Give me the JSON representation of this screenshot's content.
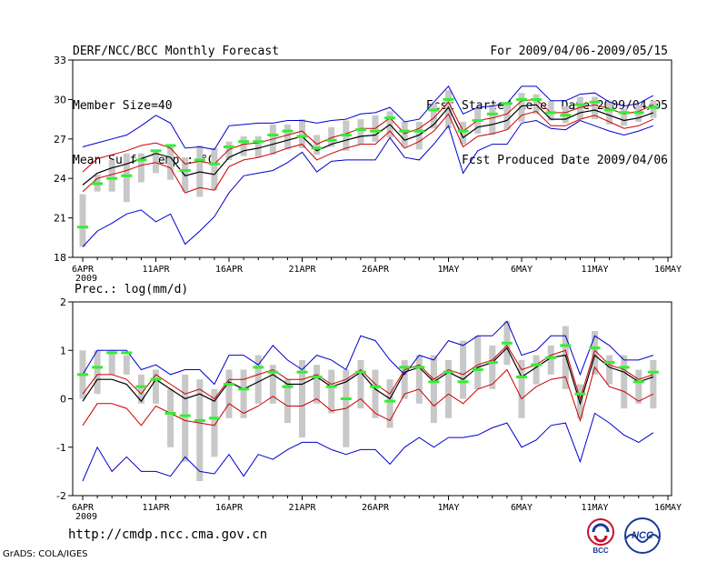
{
  "header": {
    "left": [
      "DERF/NCC/BCC Monthly Forecast",
      "Member Size=40",
      "Mean Surf. Temp.: °C"
    ],
    "right": [
      "For 2009/04/06-2009/05/15",
      "Fcst Started Refer Date 2009/04/05",
      "Fcst Produced Date 2009/04/06"
    ]
  },
  "footer": {
    "url": "http://cmdp.ncc.cma.gov.cn",
    "credit": "GrADS: COLA/IGES",
    "logo_left": "BCC",
    "logo_right": "NCC"
  },
  "colors": {
    "envelope": "#0000cc",
    "spread": "#cc0000",
    "mean": "#000000",
    "median": "#33ee33",
    "box": "#c8c8c8"
  },
  "chart_data": [
    {
      "type": "line",
      "title": "Mean Surf. Temp.: °C",
      "ylim": [
        18,
        33
      ],
      "yticks": [
        18,
        21,
        24,
        27,
        30,
        33
      ],
      "xlim": [
        0,
        39
      ],
      "xticks": [
        {
          "day": 0,
          "label": "6APR",
          "sub": "2009"
        },
        {
          "day": 5,
          "label": "11APR"
        },
        {
          "day": 10,
          "label": "16APR"
        },
        {
          "day": 15,
          "label": "21APR"
        },
        {
          "day": 20,
          "label": "26APR"
        },
        {
          "day": 25,
          "label": "1MAY"
        },
        {
          "day": 30,
          "label": "6MAY"
        },
        {
          "day": 35,
          "label": "11MAY"
        },
        {
          "day": 40,
          "label": "16MAY"
        }
      ],
      "series": [
        {
          "name": "max",
          "values": [
            26.4,
            26.7,
            27.0,
            27.3,
            28.0,
            28.8,
            28.2,
            26.3,
            26.4,
            26.2,
            28.0,
            28.1,
            28.2,
            28.2,
            28.4,
            28.4,
            28.2,
            28.4,
            28.5,
            28.9,
            29.0,
            29.4,
            28.3,
            28.5,
            29.8,
            31.0,
            28.9,
            29.4,
            29.5,
            29.7,
            31.0,
            31.0,
            29.9,
            29.9,
            30.4,
            30.5,
            29.8,
            29.5,
            29.7,
            30.3
          ]
        },
        {
          "name": "upper",
          "values": [
            24.5,
            25.5,
            25.8,
            26.1,
            26.5,
            26.7,
            26.3,
            25.1,
            25.3,
            25.1,
            26.2,
            26.6,
            26.7,
            27.0,
            27.3,
            27.6,
            26.6,
            27.1,
            27.4,
            27.8,
            27.8,
            28.6,
            27.4,
            27.8,
            28.6,
            29.8,
            27.6,
            28.4,
            28.6,
            28.9,
            29.9,
            30.0,
            29.0,
            29.0,
            29.4,
            29.6,
            29.3,
            28.9,
            29.1,
            29.6
          ]
        },
        {
          "name": "mean",
          "values": [
            23.5,
            24.4,
            24.8,
            25.1,
            25.5,
            25.9,
            25.6,
            24.2,
            24.5,
            24.3,
            25.6,
            26.1,
            26.3,
            26.6,
            26.9,
            27.2,
            26.1,
            26.6,
            26.9,
            27.2,
            27.3,
            28.1,
            26.9,
            27.3,
            28.1,
            29.4,
            27.1,
            27.9,
            28.1,
            28.4,
            29.5,
            29.6,
            28.5,
            28.5,
            29.0,
            29.2,
            28.8,
            28.4,
            28.6,
            29.0
          ]
        },
        {
          "name": "lower",
          "values": [
            23.0,
            24.0,
            24.3,
            24.6,
            25.0,
            25.2,
            24.8,
            22.9,
            23.3,
            23.1,
            24.9,
            25.4,
            25.6,
            25.9,
            26.3,
            26.6,
            25.4,
            25.9,
            26.3,
            26.6,
            26.6,
            27.6,
            26.3,
            26.8,
            27.6,
            28.9,
            26.4,
            27.2,
            27.4,
            27.7,
            28.8,
            29.1,
            28.0,
            28.0,
            28.5,
            28.8,
            28.3,
            27.8,
            28.0,
            28.5
          ]
        },
        {
          "name": "min",
          "values": [
            18.8,
            20.0,
            20.6,
            21.3,
            21.6,
            20.7,
            21.3,
            19.0,
            20.0,
            21.1,
            22.9,
            24.2,
            24.4,
            24.6,
            25.2,
            26.0,
            24.5,
            25.3,
            25.4,
            25.4,
            25.4,
            27.1,
            25.6,
            25.4,
            26.6,
            28.0,
            24.4,
            26.1,
            26.6,
            26.6,
            28.2,
            28.4,
            27.8,
            27.7,
            28.4,
            28.0,
            27.6,
            27.3,
            27.6,
            28.0
          ]
        },
        {
          "name": "median",
          "values": [
            20.3,
            23.6,
            24.0,
            24.2,
            25.4,
            26.1,
            26.5,
            24.6,
            25.4,
            25.1,
            26.4,
            26.8,
            26.8,
            27.3,
            27.6,
            27.2,
            26.3,
            26.9,
            27.3,
            27.7,
            27.6,
            28.6,
            27.6,
            27.6,
            29.2,
            30.0,
            27.6,
            28.4,
            28.9,
            29.7,
            30.0,
            30.0,
            29.0,
            28.8,
            29.6,
            29.8,
            29.2,
            29.0,
            29.0,
            29.4
          ]
        },
        {
          "name": "box_low",
          "values": [
            18.8,
            23.0,
            23.0,
            22.2,
            23.7,
            24.4,
            23.9,
            23.0,
            22.6,
            23.1,
            25.4,
            25.7,
            25.6,
            25.8,
            26.2,
            26.3,
            25.8,
            26.4,
            26.1,
            26.6,
            26.8,
            27.1,
            26.4,
            26.2,
            27.8,
            27.8,
            26.6,
            27.4,
            27.3,
            27.7,
            28.3,
            28.9,
            28.4,
            28.2,
            28.5,
            28.5,
            28.1,
            28.0,
            28.3,
            28.6
          ]
        },
        {
          "name": "box_high",
          "values": [
            22.8,
            24.3,
            25.4,
            25.9,
            25.9,
            26.2,
            26.5,
            25.6,
            26.5,
            26.3,
            26.8,
            27.2,
            27.2,
            28.1,
            28.1,
            28.5,
            27.3,
            27.9,
            28.4,
            28.5,
            28.8,
            29.1,
            28.3,
            28.3,
            29.7,
            30.7,
            28.3,
            29.3,
            29.6,
            29.8,
            30.5,
            30.4,
            29.9,
            29.5,
            30.2,
            30.2,
            29.9,
            29.3,
            29.6,
            29.9
          ]
        }
      ]
    },
    {
      "type": "line",
      "title": "Prec.: log(mm/d)",
      "ylim": [
        -2,
        2
      ],
      "yticks": [
        -2,
        -1,
        0,
        1,
        2
      ],
      "xlim": [
        0,
        39
      ],
      "xticks": [
        {
          "day": 0,
          "label": "6APR",
          "sub": "2009"
        },
        {
          "day": 5,
          "label": "11APR"
        },
        {
          "day": 10,
          "label": "16APR"
        },
        {
          "day": 15,
          "label": "21APR"
        },
        {
          "day": 20,
          "label": "26APR"
        },
        {
          "day": 25,
          "label": "1MAY"
        },
        {
          "day": 30,
          "label": "6MAY"
        },
        {
          "day": 35,
          "label": "11MAY"
        },
        {
          "day": 40,
          "label": "16MAY"
        }
      ],
      "series": [
        {
          "name": "max",
          "values": [
            0.5,
            1.0,
            1.0,
            1.0,
            0.6,
            0.7,
            0.5,
            0.6,
            0.6,
            0.3,
            0.9,
            0.9,
            0.7,
            1.1,
            0.8,
            0.6,
            0.9,
            0.8,
            0.6,
            1.3,
            1.2,
            0.8,
            0.5,
            0.9,
            0.8,
            1.2,
            1.1,
            1.3,
            1.3,
            1.6,
            0.9,
            1.0,
            1.3,
            1.3,
            0.5,
            1.3,
            1.1,
            0.8,
            0.8,
            0.9
          ]
        },
        {
          "name": "upper",
          "values": [
            0.1,
            0.5,
            0.5,
            0.4,
            0.1,
            0.5,
            0.3,
            0.1,
            0.2,
            0.0,
            0.4,
            0.4,
            0.5,
            0.6,
            0.4,
            0.4,
            0.5,
            0.3,
            0.4,
            0.6,
            0.3,
            0.1,
            0.6,
            0.7,
            0.4,
            0.6,
            0.5,
            0.7,
            0.8,
            1.1,
            0.6,
            0.7,
            0.9,
            1.0,
            0.0,
            1.0,
            0.7,
            0.6,
            0.4,
            0.5
          ]
        },
        {
          "name": "mean",
          "values": [
            -0.05,
            0.4,
            0.4,
            0.3,
            -0.05,
            0.4,
            0.2,
            0.0,
            0.1,
            -0.05,
            0.35,
            0.2,
            0.35,
            0.5,
            0.3,
            0.3,
            0.45,
            0.25,
            0.35,
            0.55,
            0.2,
            0.0,
            0.55,
            0.65,
            0.35,
            0.55,
            0.4,
            0.65,
            0.75,
            1.05,
            0.45,
            0.65,
            0.85,
            0.9,
            -0.1,
            0.9,
            0.65,
            0.55,
            0.35,
            0.45
          ]
        },
        {
          "name": "lower",
          "values": [
            -0.55,
            -0.1,
            -0.1,
            -0.2,
            -0.55,
            -0.15,
            -0.3,
            -0.45,
            -0.5,
            -0.55,
            -0.1,
            -0.3,
            -0.15,
            0.05,
            -0.15,
            -0.15,
            0.0,
            -0.25,
            -0.2,
            0.0,
            -0.3,
            -0.45,
            0.1,
            0.2,
            -0.15,
            0.1,
            -0.1,
            0.2,
            0.3,
            0.6,
            0.0,
            0.25,
            0.4,
            0.45,
            -0.45,
            0.65,
            0.25,
            0.15,
            -0.05,
            0.1
          ]
        },
        {
          "name": "min",
          "values": [
            -1.7,
            -1.0,
            -1.5,
            -1.2,
            -1.5,
            -1.5,
            -1.6,
            -1.2,
            -1.5,
            -1.55,
            -1.15,
            -1.6,
            -1.15,
            -1.25,
            -1.05,
            -0.9,
            -0.9,
            -1.05,
            -1.15,
            -1.05,
            -1.05,
            -1.35,
            -1.0,
            -0.8,
            -1.0,
            -0.8,
            -0.8,
            -0.75,
            -0.6,
            -0.5,
            -1.0,
            -0.85,
            -0.55,
            -0.5,
            -1.3,
            -0.3,
            -0.5,
            -0.75,
            -0.9,
            -0.7
          ]
        },
        {
          "name": "median",
          "values": [
            0.5,
            0.65,
            0.95,
            0.95,
            0.25,
            0.4,
            -0.3,
            -0.35,
            -0.45,
            -0.4,
            0.3,
            0.2,
            0.65,
            0.55,
            0.25,
            0.55,
            0.45,
            0.25,
            0.0,
            0.55,
            0.25,
            -0.05,
            0.65,
            0.65,
            0.35,
            0.55,
            0.35,
            0.6,
            0.75,
            1.15,
            0.45,
            0.7,
            0.85,
            1.1,
            0.1,
            1.05,
            0.75,
            0.65,
            0.35,
            0.55
          ]
        },
        {
          "name": "box_low",
          "values": [
            0.0,
            0.1,
            0.5,
            0.5,
            -0.1,
            -0.1,
            -1.0,
            -1.3,
            -1.7,
            -1.2,
            -0.4,
            -0.4,
            -0.1,
            -0.1,
            -0.5,
            -0.8,
            -0.1,
            -0.3,
            -1.0,
            -0.2,
            -0.4,
            -0.6,
            0.0,
            -0.1,
            -0.5,
            -0.4,
            0.0,
            0.2,
            0.2,
            0.7,
            -0.4,
            0.3,
            0.5,
            0.2,
            -0.4,
            0.5,
            0.3,
            -0.2,
            -0.1,
            -0.2
          ]
        },
        {
          "name": "box_high",
          "values": [
            1.0,
            1.0,
            1.0,
            0.9,
            0.5,
            0.6,
            0.2,
            0.5,
            0.4,
            0.2,
            0.6,
            0.6,
            0.9,
            0.7,
            0.4,
            0.8,
            0.7,
            0.6,
            0.6,
            0.8,
            0.6,
            0.4,
            0.8,
            0.9,
            0.9,
            0.8,
            1.2,
            1.3,
            1.1,
            1.6,
            0.8,
            0.9,
            1.1,
            1.5,
            0.3,
            1.4,
            0.9,
            0.9,
            0.6,
            0.8
          ]
        }
      ]
    }
  ]
}
